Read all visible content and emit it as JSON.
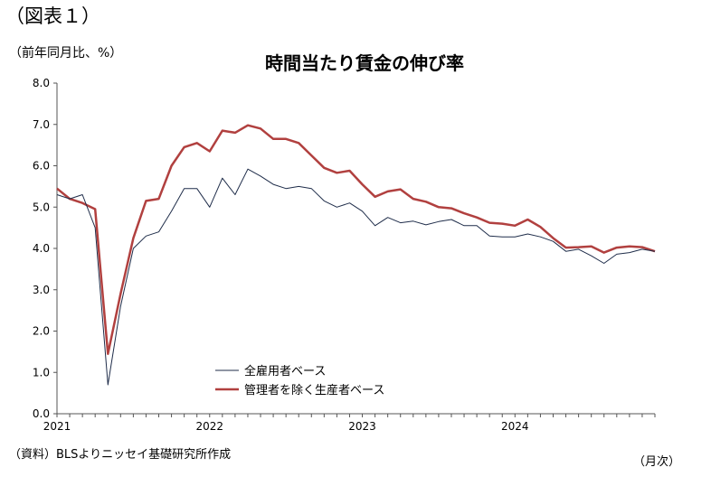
{
  "figure_label": "（図表１）",
  "unit_label": "（前年同月比、%）",
  "source_note": "（資料）BLSよりニッセイ基礎研究所作成",
  "x_unit": "（月次）",
  "colors": {
    "all": "#1f2d4a",
    "production": "#b1403f",
    "axis": "#555555"
  },
  "chart_data": {
    "type": "line",
    "title": "時間当たり賃金の伸び率",
    "xlabel": "",
    "ylabel": "",
    "ylim": [
      0,
      8
    ],
    "yticks": [
      "0.0",
      "1.0",
      "2.0",
      "3.0",
      "4.0",
      "5.0",
      "6.0",
      "7.0",
      "8.0"
    ],
    "x": [
      "2021-01",
      "2021-02",
      "2021-03",
      "2021-04",
      "2021-05",
      "2021-06",
      "2021-07",
      "2021-08",
      "2021-09",
      "2021-10",
      "2021-11",
      "2021-12",
      "2022-01",
      "2022-02",
      "2022-03",
      "2022-04",
      "2022-05",
      "2022-06",
      "2022-07",
      "2022-08",
      "2022-09",
      "2022-10",
      "2022-11",
      "2022-12",
      "2023-01",
      "2023-02",
      "2023-03",
      "2023-04",
      "2023-05",
      "2023-06",
      "2023-07",
      "2023-08",
      "2023-09",
      "2023-10",
      "2023-11",
      "2023-12",
      "2024-01",
      "2024-02",
      "2024-03",
      "2024-04",
      "2024-05",
      "2024-06",
      "2024-07",
      "2024-08",
      "2024-09",
      "2024-10",
      "2024-11",
      "2024-12"
    ],
    "xtick_labels": [
      {
        "label": "2021",
        "at": "2021-01"
      },
      {
        "label": "2022",
        "at": "2022-01"
      },
      {
        "label": "2023",
        "at": "2023-01"
      },
      {
        "label": "2024",
        "at": "2024-01"
      }
    ],
    "legend_position": "bottom-center",
    "grid": false,
    "series": [
      {
        "name": "全雇用者ベース",
        "color": "#1f2d4a",
        "width": 1,
        "values": [
          5.3,
          5.2,
          5.3,
          4.5,
          0.7,
          2.6,
          4.0,
          4.3,
          4.4,
          4.9,
          5.45,
          5.45,
          5.0,
          5.7,
          5.3,
          5.92,
          5.75,
          5.55,
          5.45,
          5.5,
          5.45,
          5.15,
          5.0,
          5.1,
          4.9,
          4.55,
          4.75,
          4.62,
          4.66,
          4.57,
          4.65,
          4.7,
          4.55,
          4.55,
          4.3,
          4.28,
          4.28,
          4.35,
          4.28,
          4.17,
          3.93,
          3.98,
          3.82,
          3.64,
          3.86,
          3.9,
          3.98,
          3.93
        ]
      },
      {
        "name": "管理者を除く生産者ベース",
        "color": "#b1403f",
        "width": 2.5,
        "values": [
          5.45,
          5.2,
          5.1,
          4.95,
          1.45,
          2.9,
          4.25,
          5.15,
          5.2,
          6.0,
          6.45,
          6.55,
          6.35,
          6.85,
          6.8,
          6.98,
          6.9,
          6.65,
          6.65,
          6.55,
          6.25,
          5.95,
          5.83,
          5.88,
          5.55,
          5.25,
          5.38,
          5.43,
          5.2,
          5.13,
          5.0,
          4.97,
          4.85,
          4.75,
          4.62,
          4.6,
          4.55,
          4.7,
          4.52,
          4.25,
          4.02,
          4.03,
          4.05,
          3.9,
          4.02,
          4.05,
          4.03,
          3.93
        ]
      }
    ]
  }
}
